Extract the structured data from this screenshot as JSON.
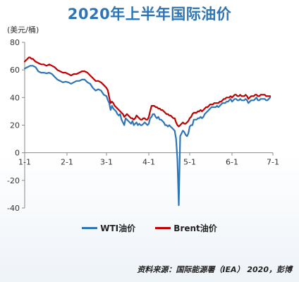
{
  "title": "2020年上半年国际油价",
  "unit_label": "(美元/桶)",
  "source": "资料来源：国际能源署（IEA） 2020，彭博",
  "colors": {
    "title": "#2e75b6",
    "wti": "#2e75b6",
    "brent": "#c00000",
    "axis": "#888888"
  },
  "chart_data": {
    "type": "line",
    "title": "2020年上半年国际油价",
    "ylabel": "(美元/桶)",
    "xlabel": "",
    "ylim": [
      -40,
      80
    ],
    "yticks": [
      -40,
      -20,
      0,
      20,
      40,
      60,
      80
    ],
    "xlim": [
      0,
      181
    ],
    "xticks": [
      {
        "label": "1-1",
        "day": 0
      },
      {
        "label": "2-1",
        "day": 31
      },
      {
        "label": "3-1",
        "day": 60
      },
      {
        "label": "4-1",
        "day": 91
      },
      {
        "label": "5-1",
        "day": 121
      },
      {
        "label": "6-1",
        "day": 152
      },
      {
        "label": "7-1",
        "day": 182
      }
    ],
    "grid": false,
    "legend": "bottom",
    "series": [
      {
        "name": "WTI油价",
        "color": "#2e75b6",
        "points": [
          [
            0,
            61
          ],
          [
            2,
            62
          ],
          [
            4,
            63
          ],
          [
            6,
            63
          ],
          [
            8,
            62
          ],
          [
            10,
            59
          ],
          [
            12,
            58
          ],
          [
            14,
            58
          ],
          [
            16,
            57.5
          ],
          [
            18,
            58
          ],
          [
            20,
            57
          ],
          [
            22,
            55
          ],
          [
            24,
            53
          ],
          [
            26,
            52
          ],
          [
            28,
            51
          ],
          [
            30,
            51.5
          ],
          [
            32,
            51
          ],
          [
            34,
            50
          ],
          [
            36,
            51
          ],
          [
            38,
            52
          ],
          [
            40,
            52
          ],
          [
            42,
            53
          ],
          [
            44,
            53
          ],
          [
            46,
            51
          ],
          [
            48,
            50
          ],
          [
            50,
            47
          ],
          [
            52,
            45
          ],
          [
            54,
            46
          ],
          [
            56,
            45
          ],
          [
            58,
            42
          ],
          [
            60,
            41
          ],
          [
            61,
            38
          ],
          [
            62,
            36
          ],
          [
            63,
            31
          ],
          [
            64,
            34
          ],
          [
            65,
            32
          ],
          [
            66,
            31
          ],
          [
            67,
            30
          ],
          [
            68,
            28
          ],
          [
            69,
            27
          ],
          [
            70,
            28
          ],
          [
            71,
            24
          ],
          [
            72,
            22
          ],
          [
            73,
            20
          ],
          [
            74,
            25
          ],
          [
            75,
            24
          ],
          [
            76,
            23
          ],
          [
            77,
            22
          ],
          [
            78,
            21
          ],
          [
            79,
            23
          ],
          [
            80,
            20
          ],
          [
            81,
            21
          ],
          [
            82,
            22
          ],
          [
            83,
            20
          ],
          [
            84,
            21
          ],
          [
            85,
            20
          ],
          [
            86,
            20
          ],
          [
            87,
            21
          ],
          [
            88,
            22
          ],
          [
            89,
            21
          ],
          [
            90,
            20
          ],
          [
            91,
            21
          ],
          [
            92,
            25
          ],
          [
            93,
            26
          ],
          [
            94,
            28
          ],
          [
            95,
            28
          ],
          [
            96,
            26
          ],
          [
            97,
            25
          ],
          [
            98,
            26
          ],
          [
            99,
            24
          ],
          [
            100,
            24
          ],
          [
            101,
            23
          ],
          [
            102,
            22
          ],
          [
            103,
            20
          ],
          [
            104,
            20
          ],
          [
            105,
            19
          ],
          [
            106,
            20
          ],
          [
            107,
            19
          ],
          [
            108,
            18
          ],
          [
            109,
            17
          ],
          [
            110,
            16
          ],
          [
            111,
            10
          ],
          [
            112,
            -5
          ],
          [
            113,
            -38
          ],
          [
            114,
            12
          ],
          [
            115,
            14
          ],
          [
            116,
            16
          ],
          [
            117,
            15
          ],
          [
            118,
            13
          ],
          [
            119,
            12
          ],
          [
            120,
            14
          ],
          [
            121,
            19
          ],
          [
            122,
            20
          ],
          [
            123,
            20
          ],
          [
            124,
            24
          ],
          [
            125,
            24
          ],
          [
            126,
            24
          ],
          [
            127,
            25
          ],
          [
            128,
            25
          ],
          [
            129,
            26
          ],
          [
            130,
            25
          ],
          [
            131,
            26
          ],
          [
            132,
            28
          ],
          [
            133,
            29
          ],
          [
            134,
            30
          ],
          [
            135,
            31
          ],
          [
            136,
            32
          ],
          [
            137,
            33
          ],
          [
            138,
            33
          ],
          [
            139,
            33
          ],
          [
            140,
            33
          ],
          [
            141,
            34
          ],
          [
            142,
            33
          ],
          [
            143,
            34
          ],
          [
            144,
            35
          ],
          [
            145,
            36
          ],
          [
            146,
            36
          ],
          [
            147,
            36
          ],
          [
            148,
            37
          ],
          [
            149,
            37
          ],
          [
            150,
            38
          ],
          [
            151,
            39
          ],
          [
            152,
            37
          ],
          [
            153,
            38
          ],
          [
            154,
            39
          ],
          [
            155,
            39
          ],
          [
            156,
            38
          ],
          [
            157,
            38
          ],
          [
            158,
            39
          ],
          [
            159,
            38
          ],
          [
            160,
            38
          ],
          [
            161,
            38
          ],
          [
            162,
            39
          ],
          [
            163,
            38
          ],
          [
            164,
            36
          ],
          [
            165,
            37
          ],
          [
            166,
            38
          ],
          [
            167,
            38
          ],
          [
            168,
            38
          ],
          [
            169,
            39
          ],
          [
            170,
            40
          ],
          [
            171,
            38
          ],
          [
            172,
            38
          ],
          [
            173,
            39
          ],
          [
            174,
            39
          ],
          [
            175,
            39
          ],
          [
            176,
            39
          ],
          [
            177,
            38
          ],
          [
            178,
            38
          ],
          [
            179,
            39
          ],
          [
            180,
            40
          ]
        ]
      },
      {
        "name": "Brent油价",
        "color": "#c00000",
        "points": [
          [
            0,
            66
          ],
          [
            1,
            67
          ],
          [
            2,
            68
          ],
          [
            3,
            69
          ],
          [
            4,
            69
          ],
          [
            5,
            68
          ],
          [
            6,
            68
          ],
          [
            7,
            67
          ],
          [
            8,
            66
          ],
          [
            10,
            65
          ],
          [
            12,
            64
          ],
          [
            14,
            64
          ],
          [
            16,
            63
          ],
          [
            18,
            64
          ],
          [
            20,
            63
          ],
          [
            22,
            62
          ],
          [
            24,
            60
          ],
          [
            26,
            59
          ],
          [
            28,
            58
          ],
          [
            30,
            58
          ],
          [
            32,
            57
          ],
          [
            34,
            56
          ],
          [
            36,
            57
          ],
          [
            38,
            57
          ],
          [
            40,
            58
          ],
          [
            42,
            59
          ],
          [
            44,
            59
          ],
          [
            46,
            58
          ],
          [
            48,
            56
          ],
          [
            50,
            54
          ],
          [
            52,
            52
          ],
          [
            54,
            52
          ],
          [
            56,
            51
          ],
          [
            58,
            49
          ],
          [
            60,
            47
          ],
          [
            61,
            45
          ],
          [
            62,
            40
          ],
          [
            63,
            36
          ],
          [
            64,
            37
          ],
          [
            65,
            36
          ],
          [
            66,
            34
          ],
          [
            67,
            33
          ],
          [
            68,
            32
          ],
          [
            69,
            31
          ],
          [
            70,
            30
          ],
          [
            71,
            29
          ],
          [
            72,
            28
          ],
          [
            73,
            26
          ],
          [
            74,
            27
          ],
          [
            75,
            28
          ],
          [
            76,
            27
          ],
          [
            77,
            26
          ],
          [
            78,
            25
          ],
          [
            79,
            25
          ],
          [
            80,
            24
          ],
          [
            81,
            25
          ],
          [
            82,
            27
          ],
          [
            83,
            26
          ],
          [
            84,
            25
          ],
          [
            85,
            24
          ],
          [
            86,
            24
          ],
          [
            87,
            25
          ],
          [
            88,
            25
          ],
          [
            89,
            24
          ],
          [
            90,
            24
          ],
          [
            91,
            26
          ],
          [
            92,
            30
          ],
          [
            93,
            34
          ],
          [
            94,
            34
          ],
          [
            95,
            34
          ],
          [
            96,
            33
          ],
          [
            97,
            33
          ],
          [
            98,
            32
          ],
          [
            99,
            32
          ],
          [
            100,
            31
          ],
          [
            101,
            31
          ],
          [
            102,
            30
          ],
          [
            103,
            29
          ],
          [
            104,
            28
          ],
          [
            105,
            28
          ],
          [
            106,
            27
          ],
          [
            107,
            27
          ],
          [
            108,
            26
          ],
          [
            109,
            25
          ],
          [
            110,
            25
          ],
          [
            111,
            22
          ],
          [
            112,
            20
          ],
          [
            113,
            19
          ],
          [
            114,
            20
          ],
          [
            115,
            21
          ],
          [
            116,
            22
          ],
          [
            117,
            21
          ],
          [
            118,
            21
          ],
          [
            119,
            22
          ],
          [
            120,
            23
          ],
          [
            121,
            25
          ],
          [
            122,
            26
          ],
          [
            123,
            28
          ],
          [
            124,
            29
          ],
          [
            125,
            29
          ],
          [
            126,
            29
          ],
          [
            127,
            30
          ],
          [
            128,
            30
          ],
          [
            129,
            31
          ],
          [
            130,
            30
          ],
          [
            131,
            31
          ],
          [
            132,
            32
          ],
          [
            133,
            33
          ],
          [
            134,
            33
          ],
          [
            135,
            34
          ],
          [
            136,
            35
          ],
          [
            137,
            35
          ],
          [
            138,
            35
          ],
          [
            139,
            36
          ],
          [
            140,
            36
          ],
          [
            141,
            36
          ],
          [
            142,
            36
          ],
          [
            143,
            37
          ],
          [
            144,
            37
          ],
          [
            145,
            38
          ],
          [
            146,
            39
          ],
          [
            147,
            39
          ],
          [
            148,
            40
          ],
          [
            149,
            40
          ],
          [
            150,
            40
          ],
          [
            151,
            41
          ],
          [
            152,
            40
          ],
          [
            153,
            41
          ],
          [
            154,
            42
          ],
          [
            155,
            42
          ],
          [
            156,
            41
          ],
          [
            157,
            41
          ],
          [
            158,
            42
          ],
          [
            159,
            41
          ],
          [
            160,
            41
          ],
          [
            161,
            41
          ],
          [
            162,
            42
          ],
          [
            163,
            41
          ],
          [
            164,
            39
          ],
          [
            165,
            40
          ],
          [
            166,
            41
          ],
          [
            167,
            41
          ],
          [
            168,
            41
          ],
          [
            169,
            42
          ],
          [
            170,
            42
          ],
          [
            171,
            41
          ],
          [
            172,
            41
          ],
          [
            173,
            42
          ],
          [
            174,
            42
          ],
          [
            175,
            42
          ],
          [
            176,
            42
          ],
          [
            177,
            41
          ],
          [
            178,
            41
          ],
          [
            179,
            41
          ],
          [
            180,
            41
          ]
        ]
      }
    ]
  }
}
